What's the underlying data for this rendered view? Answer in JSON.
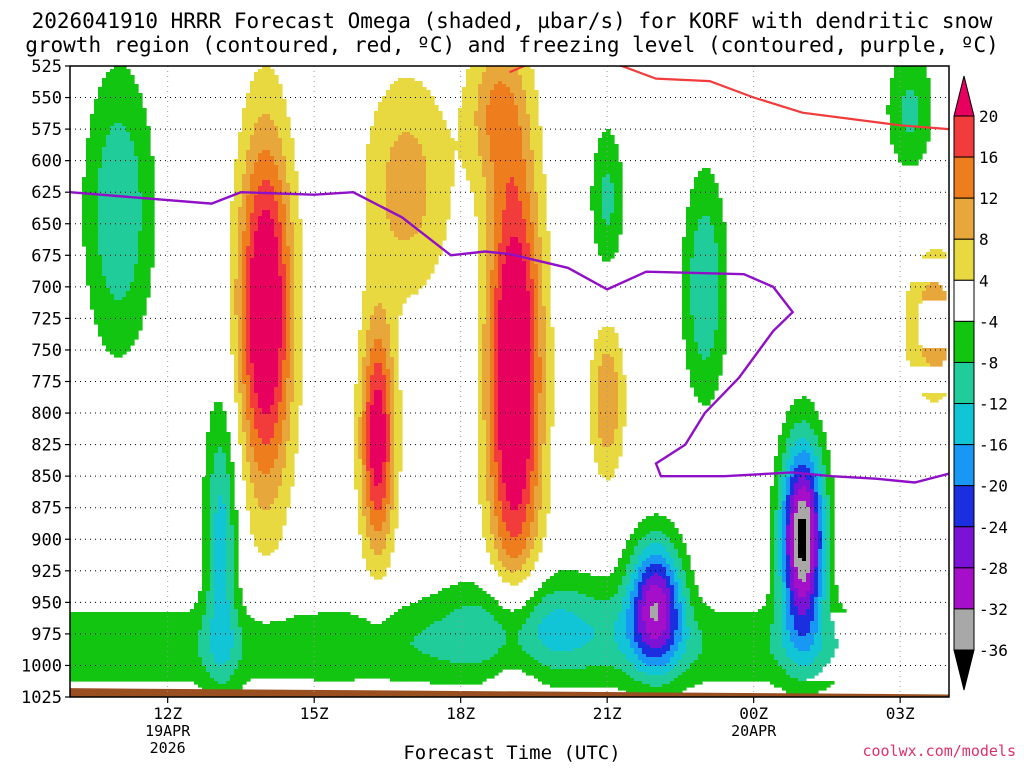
{
  "title_line1": "2026041910 HRRR Forecast Omega (shaded, µbar/s) for KORF with dendritic snow",
  "title_line2": "growth region (contoured, red, ºC) and freezing level (contoured, purple, ºC)",
  "watermark": "coolwx.com/models",
  "chart_data": {
    "type": "heatmap",
    "title": "2026041910 HRRR Forecast Omega (shaded, µbar/s) for KORF with dendritic snow growth region (contoured, red, ºC) and freezing level (contoured, purple, ºC)",
    "xlabel": "Forecast Time (UTC)",
    "ylabel": "",
    "y_scale": "pressure (inverted, top 525 to bottom 1025)",
    "yticks": [
      "525",
      "550",
      "575",
      "600",
      "625",
      "650",
      "675",
      "700",
      "725",
      "750",
      "775",
      "800",
      "825",
      "850",
      "875",
      "900",
      "925",
      "950",
      "975",
      "1000",
      "1025"
    ],
    "xticks": [
      {
        "label": "12Z",
        "hour": 12,
        "sub1": "19APR",
        "sub2": "2026"
      },
      {
        "label": "15Z",
        "hour": 15,
        "sub1": "",
        "sub2": ""
      },
      {
        "label": "18Z",
        "hour": 18,
        "sub1": "",
        "sub2": ""
      },
      {
        "label": "21Z",
        "hour": 21,
        "sub1": "",
        "sub2": ""
      },
      {
        "label": "00Z",
        "hour": 24,
        "sub1": "20APR",
        "sub2": ""
      },
      {
        "label": "03Z",
        "hour": 27,
        "sub1": "",
        "sub2": ""
      }
    ],
    "x_range_hours": [
      10,
      28
    ],
    "y_range": [
      525,
      1025
    ],
    "grid": true,
    "colorbar": {
      "labels": [
        "20",
        "16",
        "12",
        "8",
        "4",
        "-4",
        "-8",
        "-12",
        "-16",
        "-20",
        "-24",
        "-28",
        "-32",
        "-36"
      ],
      "bins": [
        {
          "lo": 20,
          "hi": 24,
          "color": "#e8005e"
        },
        {
          "lo": 16,
          "hi": 20,
          "color": "#f23c3c"
        },
        {
          "lo": 12,
          "hi": 16,
          "color": "#ee7d1e"
        },
        {
          "lo": 8,
          "hi": 12,
          "color": "#e8a73a"
        },
        {
          "lo": 4,
          "hi": 8,
          "color": "#e9d941"
        },
        {
          "lo": -4,
          "hi": 4,
          "color": "#ffffff"
        },
        {
          "lo": -8,
          "hi": -4,
          "color": "#11c511"
        },
        {
          "lo": -12,
          "hi": -8,
          "color": "#1fcc9a"
        },
        {
          "lo": -16,
          "hi": -12,
          "color": "#11c4d6"
        },
        {
          "lo": -20,
          "hi": -16,
          "color": "#1997f5"
        },
        {
          "lo": -24,
          "hi": -20,
          "color": "#1b2fe0"
        },
        {
          "lo": -28,
          "hi": -24,
          "color": "#7b13d7"
        },
        {
          "lo": -32,
          "hi": -28,
          "color": "#a60fc9"
        },
        {
          "lo": -36,
          "hi": -32,
          "color": "#a8a8a8"
        },
        {
          "lo": -40,
          "hi": -36,
          "color": "#000000"
        }
      ]
    },
    "omega_centers": [
      {
        "hour": 14.0,
        "p": 720,
        "amp": 28,
        "sh": 0.55,
        "sp": 140
      },
      {
        "hour": 16.9,
        "p": 620,
        "amp": 10,
        "sh": 0.9,
        "sp": 90
      },
      {
        "hour": 16.3,
        "p": 820,
        "amp": 24,
        "sh": 0.35,
        "sp": 90
      },
      {
        "hour": 19.1,
        "p": 770,
        "amp": 30,
        "sh": 0.55,
        "sp": 170
      },
      {
        "hour": 18.7,
        "p": 560,
        "amp": 10,
        "sh": 0.6,
        "sp": 60
      },
      {
        "hour": 21.0,
        "p": 790,
        "amp": 12,
        "sh": 0.35,
        "sp": 60
      },
      {
        "hour": 27.7,
        "p": 730,
        "amp": 11,
        "sh": 0.6,
        "sp": 60
      },
      {
        "hour": 13.1,
        "p": 900,
        "amp": -14,
        "sh": 0.35,
        "sp": 110
      },
      {
        "hour": 11.0,
        "p": 640,
        "amp": -12,
        "sh": 0.7,
        "sp": 110
      },
      {
        "hour": 21.0,
        "p": 630,
        "amp": -9,
        "sh": 0.35,
        "sp": 60
      },
      {
        "hour": 22.0,
        "p": 950,
        "amp": -28,
        "sh": 0.55,
        "sp": 50
      },
      {
        "hour": 23.0,
        "p": 700,
        "amp": -12,
        "sh": 0.45,
        "sp": 90
      },
      {
        "hour": 25.0,
        "p": 900,
        "amp": -38,
        "sh": 0.45,
        "sp": 75
      },
      {
        "hour": 27.2,
        "p": 560,
        "amp": -9,
        "sh": 0.5,
        "sp": 50
      },
      {
        "hour": 19.5,
        "p": 960,
        "amp": -10,
        "sh": 1.8,
        "sp": 40
      }
    ],
    "freezing_level": {
      "color": "#9010c8",
      "points": [
        [
          10.0,
          625
        ],
        [
          12.9,
          634
        ],
        [
          13.5,
          625
        ],
        [
          15.0,
          627
        ],
        [
          15.8,
          625
        ],
        [
          16.8,
          645
        ],
        [
          17.8,
          675
        ],
        [
          18.5,
          672
        ],
        [
          19.0,
          674
        ],
        [
          20.2,
          685
        ],
        [
          21.0,
          702
        ],
        [
          21.8,
          688
        ],
        [
          23.8,
          690
        ],
        [
          24.4,
          700
        ],
        [
          24.8,
          720
        ],
        [
          24.4,
          735
        ],
        [
          23.7,
          772
        ],
        [
          23.0,
          800
        ],
        [
          22.6,
          825
        ],
        [
          22.0,
          840
        ],
        [
          22.1,
          850
        ],
        [
          23.4,
          850
        ],
        [
          24.8,
          847
        ],
        [
          25.6,
          850
        ],
        [
          26.5,
          852
        ],
        [
          27.3,
          855
        ],
        [
          28.0,
          848
        ]
      ]
    },
    "dendritic_boundary": {
      "color": "#f23c3c",
      "points": [
        [
          19.0,
          530
        ],
        [
          19.6,
          520
        ],
        [
          20.6,
          520
        ],
        [
          21.3,
          525
        ],
        [
          22.0,
          535
        ],
        [
          23.1,
          537
        ],
        [
          24.0,
          550
        ],
        [
          25.0,
          562
        ],
        [
          26.0,
          567
        ],
        [
          27.0,
          572
        ],
        [
          28.0,
          575
        ]
      ]
    },
    "terrain": {
      "color": "#9a4f21",
      "surface_p_start": 1018,
      "surface_p_end": 1023
    }
  }
}
